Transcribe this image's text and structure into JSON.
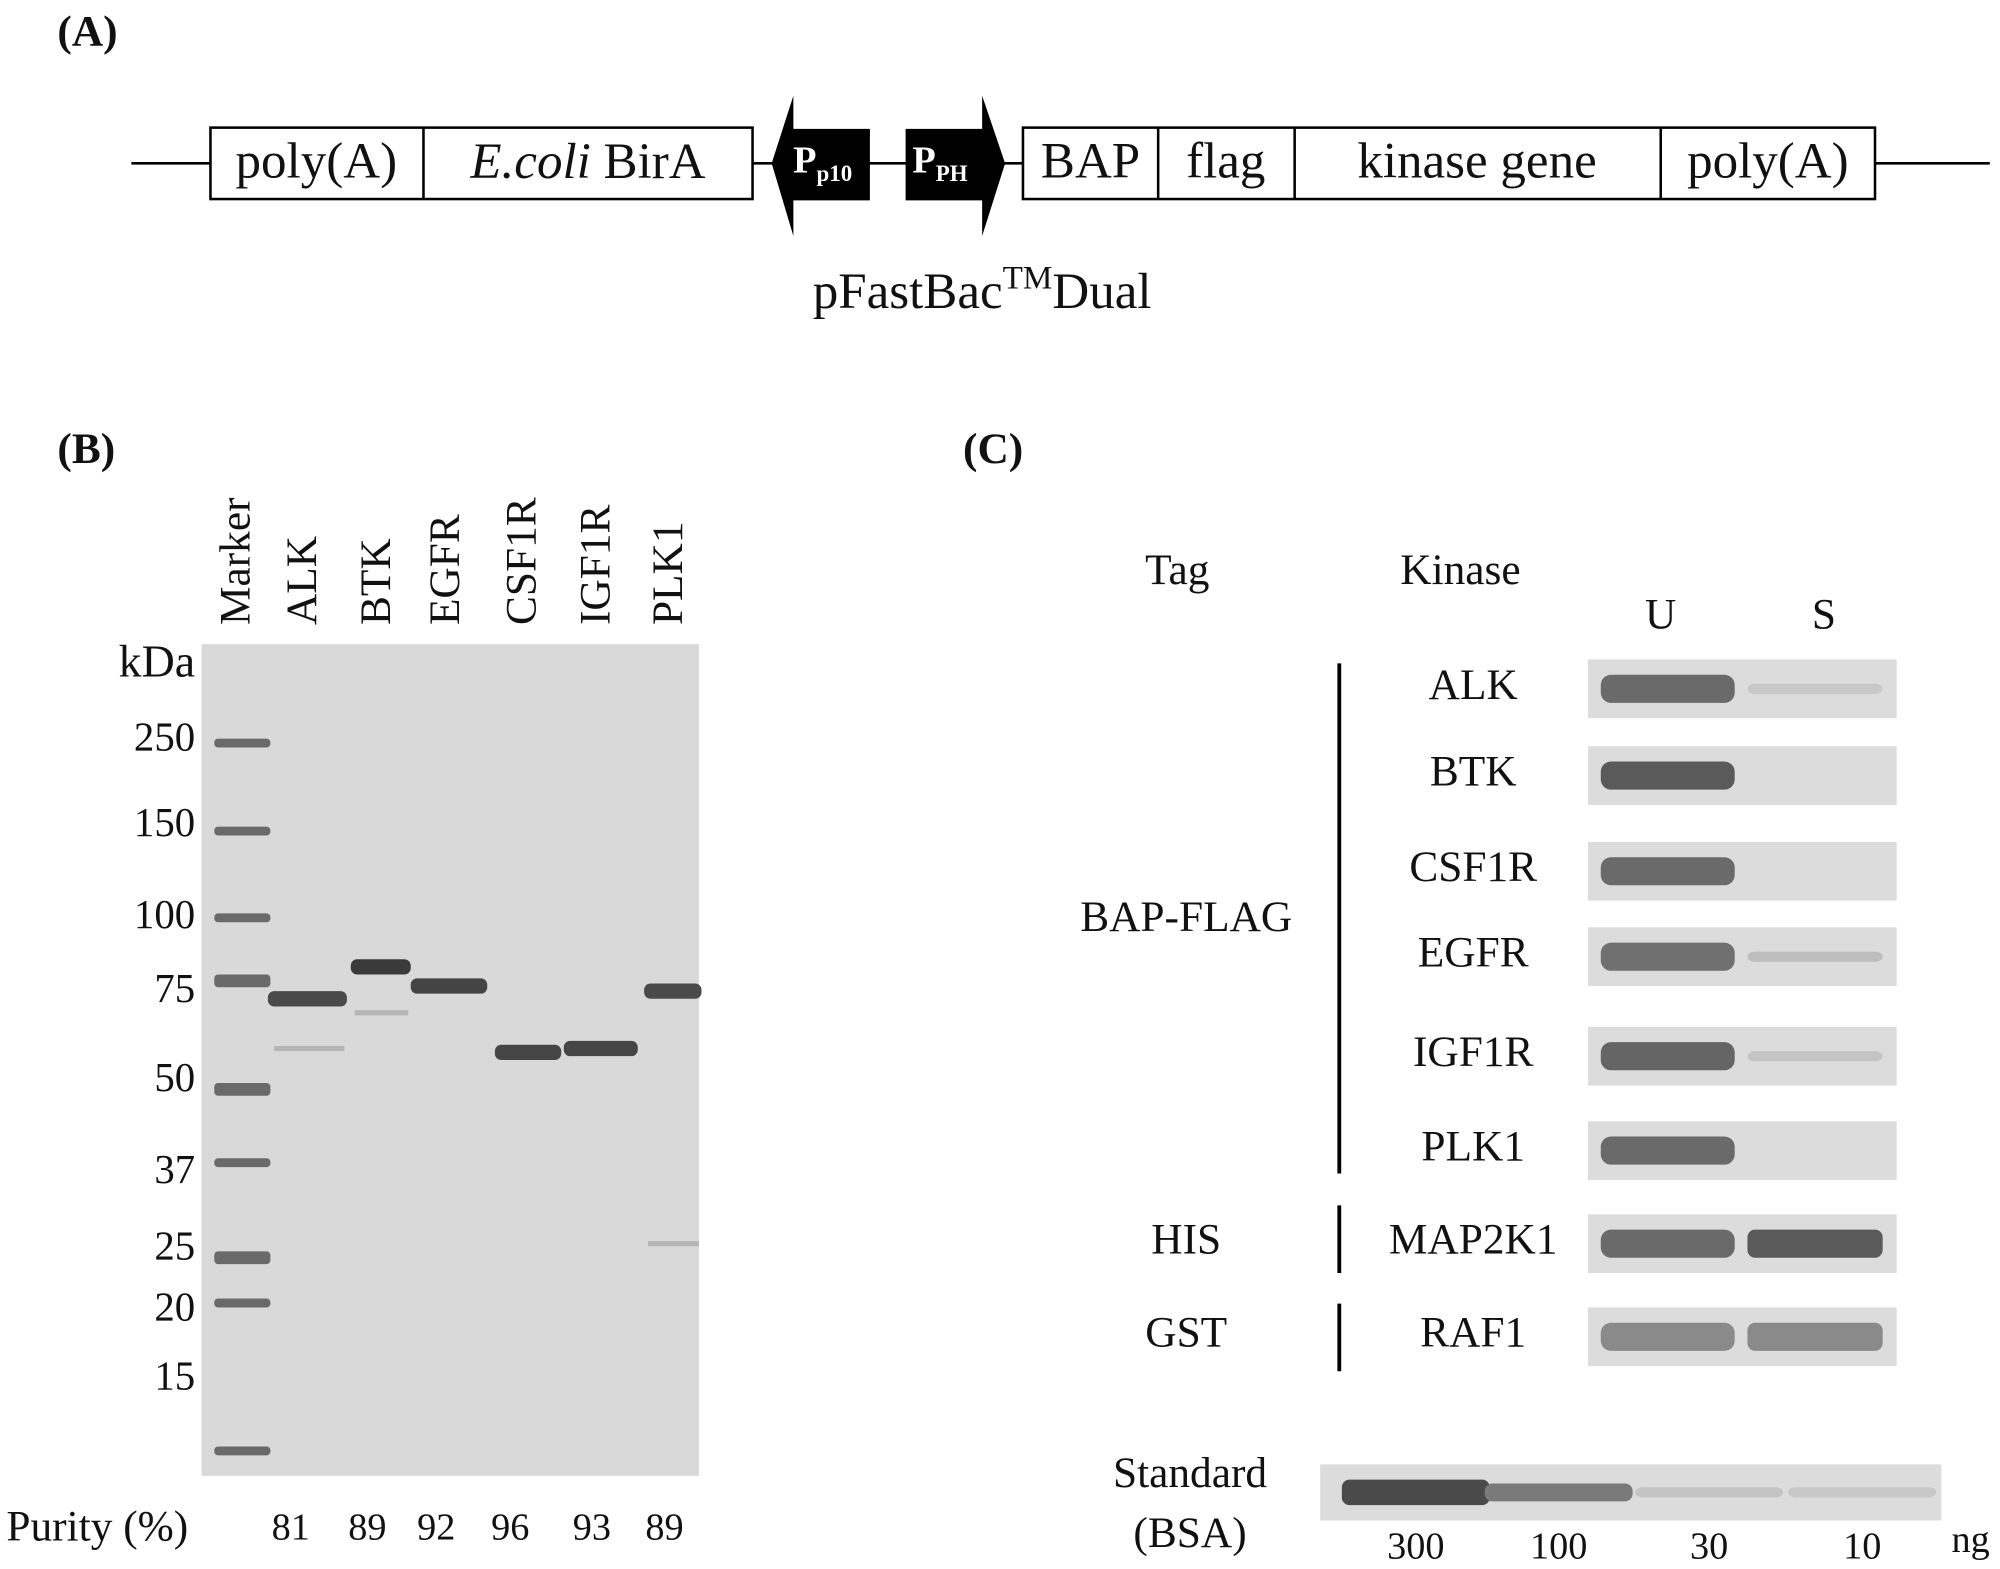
{
  "panel_a": {
    "label": "(A)",
    "left_box": [
      {
        "text": "poly(A)"
      },
      {
        "italic": "E.coli",
        "text": "BirA"
      }
    ],
    "promoters": [
      {
        "letter": "P",
        "sub": "p10"
      },
      {
        "letter": "P",
        "sub": "PH"
      }
    ],
    "right_box": [
      "BAP",
      "flag",
      "kinase gene",
      "poly(A)"
    ],
    "caption": {
      "text": "pFastBac",
      "sup": "TM",
      "suffix": "Dual"
    }
  },
  "panel_b": {
    "label": "(B)",
    "lanes": [
      "Marker",
      "ALK",
      "BTK",
      "EGFR",
      "CSF1R",
      "IGF1R",
      "PLK1"
    ],
    "unit": "kDa",
    "marker_sizes": [
      250,
      150,
      100,
      75,
      50,
      37,
      25,
      20,
      15
    ],
    "purity_label": "Purity (%)",
    "purity": [
      81,
      89,
      92,
      96,
      93,
      89
    ]
  },
  "panel_c": {
    "label": "(C)",
    "headers": {
      "tag": "Tag",
      "kinase": "Kinase",
      "u": "U",
      "s": "S"
    },
    "groups": [
      {
        "tag": "BAP-FLAG",
        "kinases": [
          "ALK",
          "BTK",
          "CSF1R",
          "EGFR",
          "IGF1R",
          "PLK1"
        ]
      },
      {
        "tag": "HIS",
        "kinases": [
          "MAP2K1"
        ]
      },
      {
        "tag": "GST",
        "kinases": [
          "RAF1"
        ]
      }
    ],
    "standard": {
      "label": [
        "Standard",
        "(BSA)"
      ],
      "amounts": [
        300,
        100,
        30,
        10
      ],
      "unit": "ng"
    }
  }
}
